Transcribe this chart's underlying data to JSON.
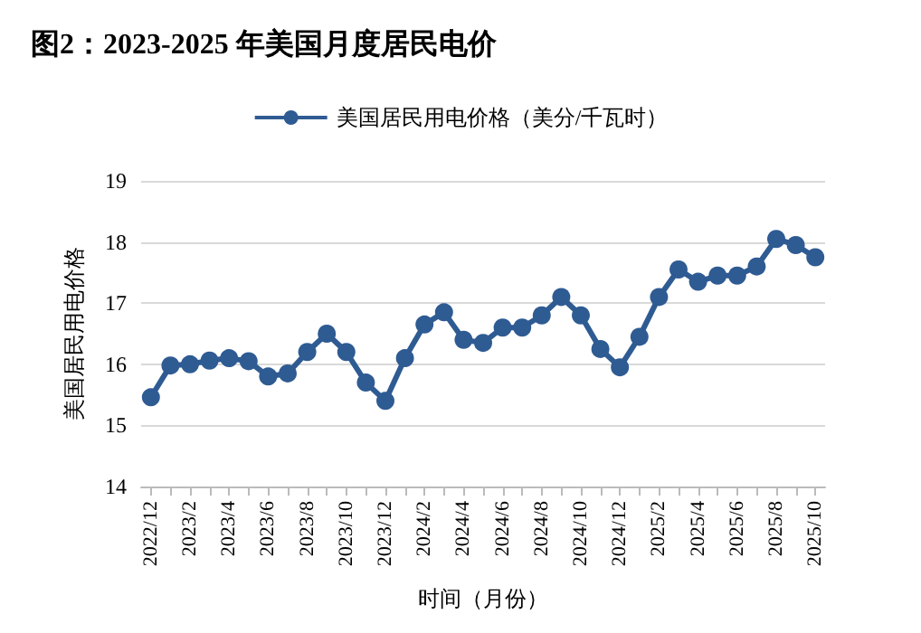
{
  "chart_data": {
    "type": "line",
    "title": "图2：2023-2025 年美国月度居民电价",
    "xlabel": "时间（月份）",
    "ylabel": "美国居民用电价格",
    "categories": [
      "2022/12",
      null,
      "2023/2",
      null,
      "2023/4",
      null,
      "2023/6",
      null,
      "2023/8",
      null,
      "2023/10",
      null,
      "2023/12",
      null,
      "2024/2",
      null,
      "2024/4",
      null,
      "2024/6",
      null,
      "2024/8",
      null,
      "2024/10",
      null,
      "2024/12",
      null,
      "2025/2",
      null,
      "2025/4",
      null,
      "2025/6",
      null,
      "2025/8",
      null,
      "2025/10"
    ],
    "series": [
      {
        "name": "美国居民用电价格（美分/千瓦时）",
        "color": "#2f5b93",
        "values": [
          15.46,
          15.98,
          16.0,
          16.06,
          16.1,
          16.05,
          15.8,
          15.85,
          16.2,
          16.5,
          16.2,
          15.7,
          15.4,
          16.1,
          16.65,
          16.85,
          16.4,
          16.35,
          16.6,
          16.6,
          16.8,
          17.1,
          16.8,
          16.25,
          15.95,
          16.45,
          17.1,
          17.55,
          17.35,
          17.45,
          17.45,
          17.6,
          18.05,
          17.95,
          17.75
        ]
      }
    ],
    "ylim": [
      14,
      19
    ],
    "yticks": [
      14,
      15,
      16,
      17,
      18,
      19
    ],
    "grid": "y",
    "legend": "top",
    "marker": "circle",
    "line_style": "solid"
  }
}
